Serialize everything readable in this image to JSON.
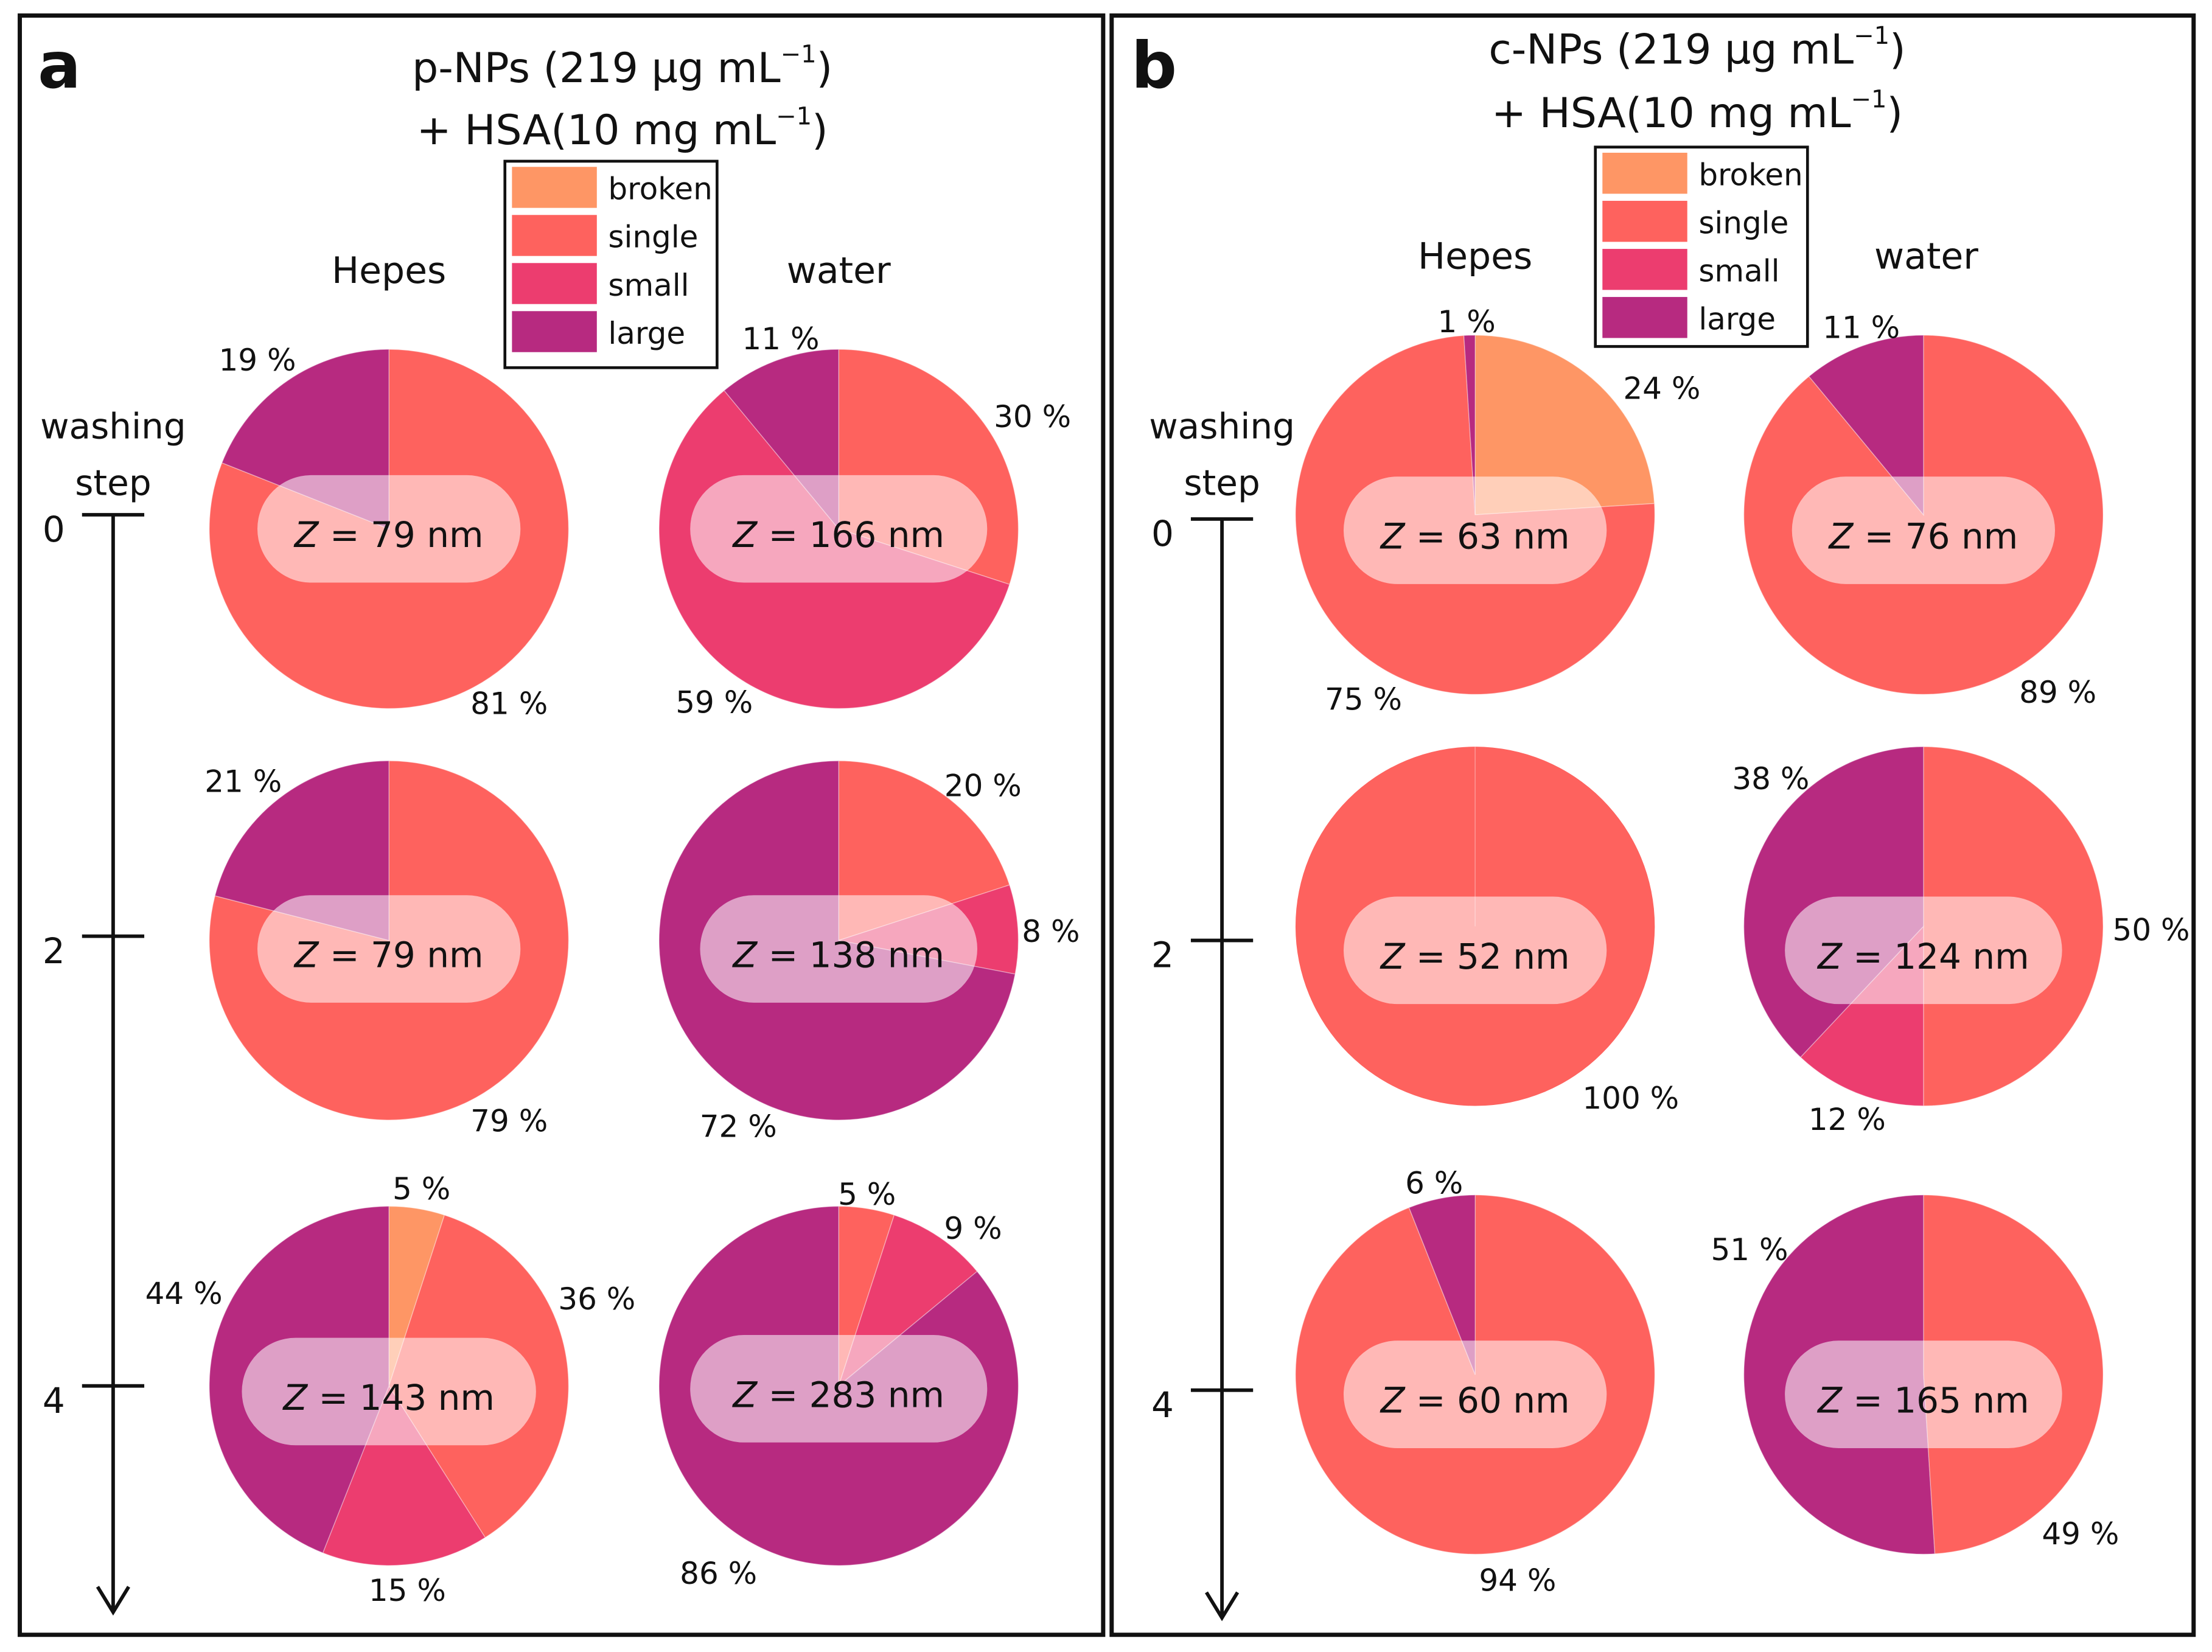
{
  "colors": {
    "broken": "#fe9665",
    "single": "#fe625e",
    "small": "#ec3d6f",
    "large": "#b72a80"
  },
  "legend": [
    {
      "key": "broken",
      "label": "broken"
    },
    {
      "key": "single",
      "label": "single"
    },
    {
      "key": "small",
      "label": "small"
    },
    {
      "key": "large",
      "label": "large"
    }
  ],
  "axis": {
    "title_line1": "washing",
    "title_line2": "step"
  },
  "chart_data": [
    {
      "type": "pie",
      "panel": "a",
      "title_line1": "p-NPs (219 µg mL",
      "title_line2": "+ HSA(10 mg mL",
      "title_sup": "−1",
      "columns": [
        "Hepes",
        "water"
      ],
      "washing_steps": [
        "0",
        "2",
        "4"
      ],
      "pies": [
        {
          "step": "0",
          "medium": "Hepes",
          "z": "79 nm",
          "slices": [
            {
              "category": "single",
              "value": 81,
              "label": "81 %"
            },
            {
              "category": "large",
              "value": 19,
              "label": "19 %"
            }
          ]
        },
        {
          "step": "0",
          "medium": "water",
          "z": "166 nm",
          "slices": [
            {
              "category": "single",
              "value": 30,
              "label": "30 %"
            },
            {
              "category": "small",
              "value": 59,
              "label": "59 %"
            },
            {
              "category": "large",
              "value": 11,
              "label": "11 %"
            }
          ]
        },
        {
          "step": "2",
          "medium": "Hepes",
          "z": "79 nm",
          "slices": [
            {
              "category": "single",
              "value": 79,
              "label": "79 %"
            },
            {
              "category": "large",
              "value": 21,
              "label": "21 %"
            }
          ]
        },
        {
          "step": "2",
          "medium": "water",
          "z": "138 nm",
          "slices": [
            {
              "category": "single",
              "value": 20,
              "label": "20 %"
            },
            {
              "category": "small",
              "value": 8,
              "label": "8 %"
            },
            {
              "category": "large",
              "value": 72,
              "label": "72 %"
            }
          ]
        },
        {
          "step": "4",
          "medium": "Hepes",
          "z": "143 nm",
          "slices": [
            {
              "category": "broken",
              "value": 5,
              "label": "5 %"
            },
            {
              "category": "single",
              "value": 36,
              "label": "36 %"
            },
            {
              "category": "small",
              "value": 15,
              "label": "15 %"
            },
            {
              "category": "large",
              "value": 44,
              "label": "44 %"
            }
          ]
        },
        {
          "step": "4",
          "medium": "water",
          "z": "283 nm",
          "slices": [
            {
              "category": "single",
              "value": 5,
              "label": "5 %"
            },
            {
              "category": "small",
              "value": 9,
              "label": "9 %"
            },
            {
              "category": "large",
              "value": 86,
              "label": "86 %"
            }
          ]
        }
      ]
    },
    {
      "type": "pie",
      "panel": "b",
      "title_line1": "c-NPs (219 µg mL",
      "title_line2": "+ HSA(10 mg mL",
      "title_sup": "−1",
      "columns": [
        "Hepes",
        "water"
      ],
      "washing_steps": [
        "0",
        "2",
        "4"
      ],
      "pies": [
        {
          "step": "0",
          "medium": "Hepes",
          "z": "63 nm",
          "slices": [
            {
              "category": "broken",
              "value": 24,
              "label": "24 %"
            },
            {
              "category": "single",
              "value": 75,
              "label": "75 %"
            },
            {
              "category": "large",
              "value": 1,
              "label": "1 %"
            }
          ]
        },
        {
          "step": "0",
          "medium": "water",
          "z": "76 nm",
          "slices": [
            {
              "category": "single",
              "value": 89,
              "label": "89 %"
            },
            {
              "category": "large",
              "value": 11,
              "label": "11 %"
            }
          ]
        },
        {
          "step": "2",
          "medium": "Hepes",
          "z": "52 nm",
          "slices": [
            {
              "category": "single",
              "value": 100,
              "label": "100 %"
            }
          ]
        },
        {
          "step": "2",
          "medium": "water",
          "z": "124 nm",
          "slices": [
            {
              "category": "single",
              "value": 50,
              "label": "50 %"
            },
            {
              "category": "small",
              "value": 12,
              "label": "12 %"
            },
            {
              "category": "large",
              "value": 38,
              "label": "38 %"
            }
          ]
        },
        {
          "step": "4",
          "medium": "Hepes",
          "z": "60 nm",
          "slices": [
            {
              "category": "single",
              "value": 94,
              "label": "94 %"
            },
            {
              "category": "large",
              "value": 6,
              "label": "6 %"
            }
          ]
        },
        {
          "step": "4",
          "medium": "water",
          "z": "165 nm",
          "slices": [
            {
              "category": "single",
              "value": 49,
              "label": "49 %"
            },
            {
              "category": "large",
              "value": 51,
              "label": "51 %"
            }
          ]
        }
      ]
    }
  ]
}
